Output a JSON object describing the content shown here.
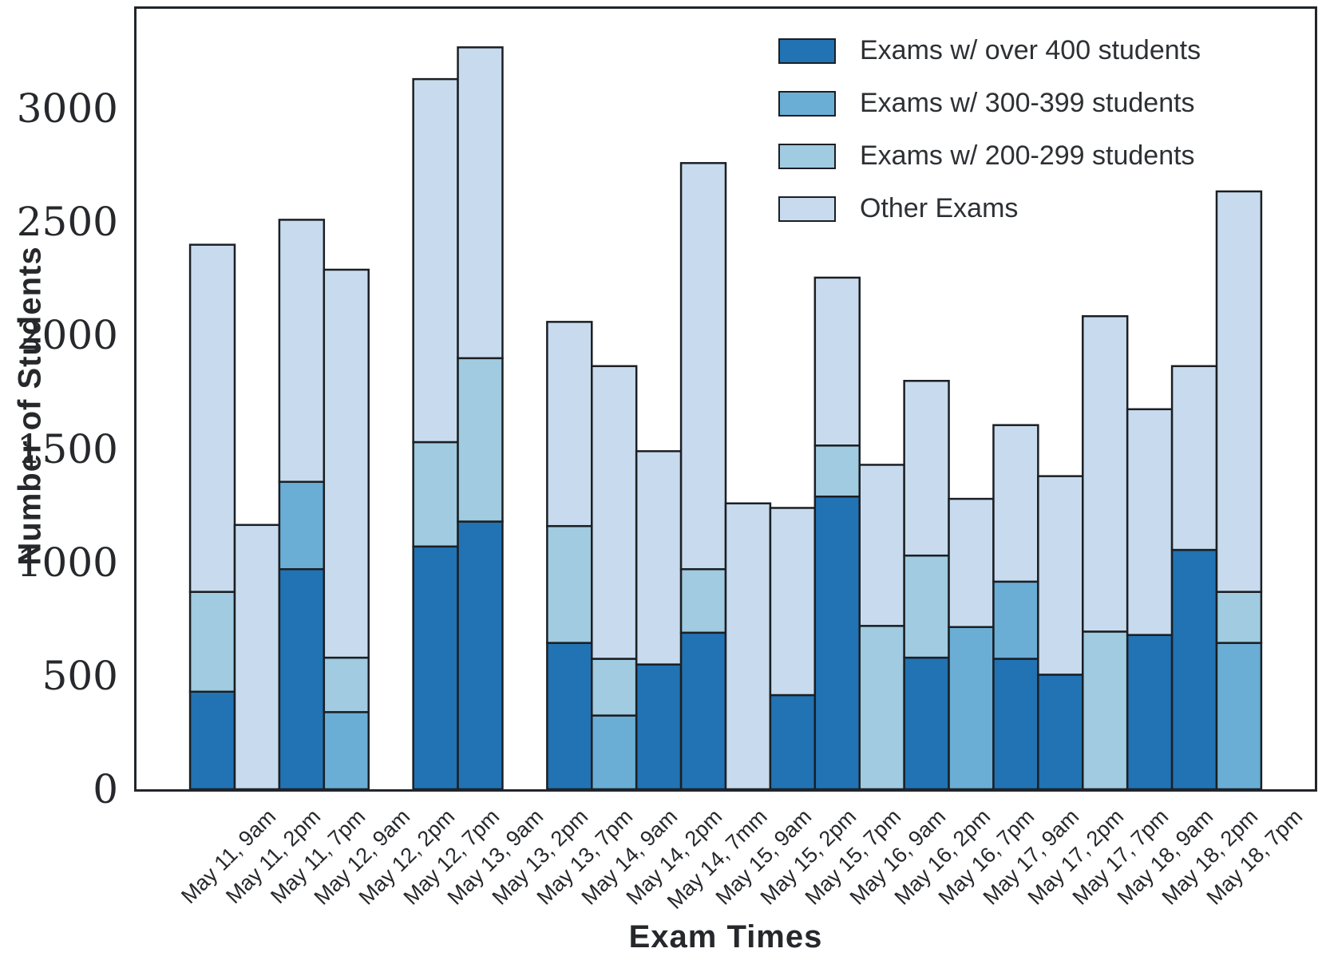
{
  "figure": {
    "background": "#ffffff",
    "edge_color": "#1b1f23"
  },
  "y_axis": {
    "label": "Number of Students",
    "tick_values": [
      0,
      500,
      1000,
      1500,
      2000,
      2500,
      3000
    ],
    "max": 3440
  },
  "x_axis": {
    "label": "Exam Times"
  },
  "chart_data": {
    "type": "bar",
    "stacked": true,
    "title": "",
    "xlabel": "Exam Times",
    "ylabel": "Number of Students",
    "ylim": [
      0,
      3440
    ],
    "grid": false,
    "legend_position": "upper right",
    "categories": [
      "May 11, 9am",
      "May 11, 2pm",
      "May 11, 7pm",
      "May 12, 9am",
      "May 12, 2pm",
      "May 12, 7pm",
      "May 13, 9am",
      "May 13, 2pm",
      "May 13, 7pm",
      "May 14, 9am",
      "May 14, 2pm",
      "May 14, 7mm",
      "May 15, 9am",
      "May 15, 2pm",
      "May 15, 7pm",
      "May 16, 9am",
      "May 16, 2pm",
      "May 16, 7pm",
      "May 17, 9am",
      "May 17, 2pm",
      "May 17, 7pm",
      "May 18, 9am",
      "May 18, 2pm",
      "May 18, 7pm"
    ],
    "series": [
      {
        "name": "Exams w/ over 400 students",
        "color": "#2173b4",
        "values": [
          430,
          0,
          970,
          0,
          0,
          1070,
          1180,
          0,
          645,
          0,
          550,
          690,
          0,
          415,
          1290,
          0,
          580,
          0,
          575,
          505,
          0,
          680,
          1055,
          0
        ]
      },
      {
        "name": "Exams w/ 300-399 students",
        "color": "#6aaed6",
        "values": [
          0,
          0,
          385,
          340,
          0,
          0,
          0,
          0,
          0,
          325,
          0,
          0,
          0,
          0,
          0,
          0,
          0,
          715,
          340,
          0,
          0,
          0,
          0,
          645
        ]
      },
      {
        "name": "Exams w/ 200-299 students",
        "color": "#a0cbe0",
        "values": [
          440,
          0,
          0,
          240,
          0,
          460,
          720,
          0,
          515,
          250,
          0,
          280,
          0,
          0,
          225,
          720,
          450,
          0,
          0,
          0,
          695,
          0,
          0,
          225
        ]
      },
      {
        "name": "Other Exams",
        "color": "#c8dbee",
        "values": [
          1530,
          1165,
          1155,
          1710,
          0,
          1600,
          1370,
          0,
          900,
          1290,
          940,
          1790,
          1260,
          825,
          740,
          710,
          770,
          565,
          690,
          875,
          1390,
          995,
          810,
          1765
        ]
      }
    ],
    "totals": [
      2400,
      1165,
      2510,
      2290,
      0,
      3130,
      3270,
      0,
      2060,
      1865,
      1490,
      2760,
      1260,
      1240,
      2255,
      1430,
      1800,
      1280,
      1605,
      1380,
      2085,
      1675,
      1865,
      2635
    ]
  }
}
